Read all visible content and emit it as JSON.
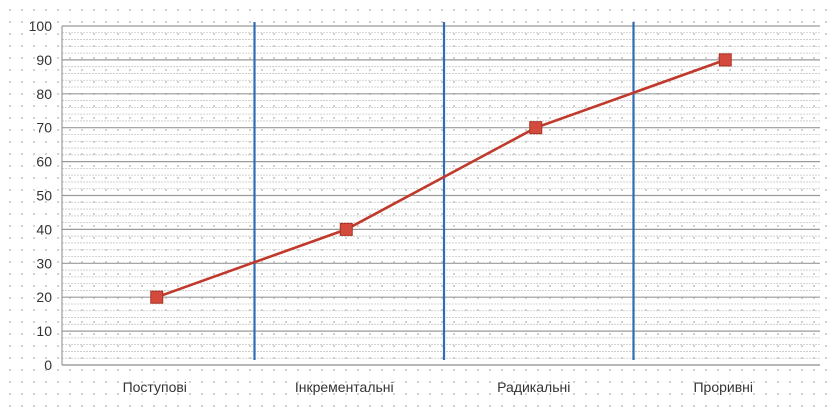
{
  "chart_data": {
    "type": "line",
    "categories": [
      "Поступові",
      "Інкрементальні",
      "Радикальні",
      "Проривні"
    ],
    "series": [
      {
        "values": [
          20,
          40,
          70,
          90
        ],
        "color": "#c0392b",
        "marker": "square"
      }
    ],
    "y_ticks": [
      "0",
      "10",
      "20",
      "30",
      "40",
      "50",
      "60",
      "70",
      "80",
      "90",
      "100"
    ],
    "ylim": [
      0,
      100
    ],
    "grid": true,
    "category_separators": true,
    "colors": {
      "major_grid": "#9a9a9a",
      "minor_grid": "#c6c6c6",
      "separator": "#2e6db4",
      "line": "#c0392b",
      "marker_fill": "#d44a3c"
    }
  }
}
